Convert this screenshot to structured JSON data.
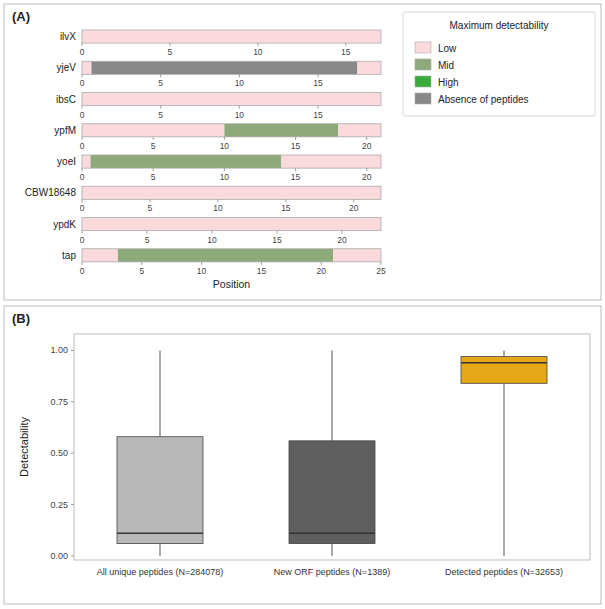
{
  "chart_data": [
    {
      "type": "bar",
      "orientation": "horizontal",
      "stacked": true,
      "title": "(A)",
      "xlabel": "Position",
      "legend": "upper right",
      "legend_title": "Maximum detectability",
      "legend_items": [
        {
          "name": "Low",
          "color": "#fadadd"
        },
        {
          "name": "Mid",
          "color": "#8faa7a"
        },
        {
          "name": "High",
          "color": "#3aaa3a"
        },
        {
          "name": "Absence of peptides",
          "color": "#888888"
        }
      ],
      "rows": [
        {
          "category": "ilvX",
          "xlim": [
            0,
            17
          ],
          "xticks": [
            0,
            5,
            10,
            15
          ],
          "segments": [
            {
              "start": 0,
              "end": 17,
              "level": "Low"
            }
          ]
        },
        {
          "category": "yjeV",
          "xlim": [
            0,
            19
          ],
          "xticks": [
            0,
            5,
            10,
            15
          ],
          "segments": [
            {
              "start": 0,
              "end": 0.6,
              "level": "Low"
            },
            {
              "start": 0.6,
              "end": 17.5,
              "level": "Absence of peptides"
            },
            {
              "start": 17.5,
              "end": 19,
              "level": "Low"
            }
          ]
        },
        {
          "category": "ibsC",
          "xlim": [
            0,
            19
          ],
          "xticks": [
            0,
            5,
            10,
            15
          ],
          "segments": [
            {
              "start": 0,
              "end": 19,
              "level": "Low"
            }
          ]
        },
        {
          "category": "ypfM",
          "xlim": [
            0,
            21
          ],
          "xticks": [
            0,
            5,
            10,
            15,
            20
          ],
          "segments": [
            {
              "start": 0,
              "end": 10,
              "level": "Low"
            },
            {
              "start": 10,
              "end": 18,
              "level": "Mid"
            },
            {
              "start": 18,
              "end": 21,
              "level": "Low"
            }
          ]
        },
        {
          "category": "yoeI",
          "xlim": [
            0,
            21
          ],
          "xticks": [
            0,
            5,
            10,
            15,
            20
          ],
          "segments": [
            {
              "start": 0,
              "end": 0.6,
              "level": "Low"
            },
            {
              "start": 0.6,
              "end": 14,
              "level": "Mid"
            },
            {
              "start": 14,
              "end": 21,
              "level": "Low"
            }
          ]
        },
        {
          "category": "CBW18648",
          "xlim": [
            0,
            22
          ],
          "xticks": [
            0,
            5,
            10,
            15,
            20
          ],
          "segments": [
            {
              "start": 0,
              "end": 22,
              "level": "Low"
            }
          ]
        },
        {
          "category": "ypdK",
          "xlim": [
            0,
            23
          ],
          "xticks": [
            0,
            5,
            10,
            15,
            20
          ],
          "segments": [
            {
              "start": 0,
              "end": 23,
              "level": "Low"
            }
          ]
        },
        {
          "category": "tap",
          "xlim": [
            0,
            25
          ],
          "xticks": [
            0,
            5,
            10,
            15,
            20,
            25
          ],
          "segments": [
            {
              "start": 0,
              "end": 3,
              "level": "Low"
            },
            {
              "start": 3,
              "end": 21,
              "level": "Mid"
            },
            {
              "start": 21,
              "end": 25,
              "level": "Low"
            }
          ]
        }
      ]
    },
    {
      "type": "box",
      "title": "(B)",
      "ylabel": "Detectability",
      "categories": [
        "All unique peptides (N=284078)",
        "New ORF peptides (N=1389)",
        "Detected peptides (N=32653)"
      ],
      "colors": [
        "#b8b8b8",
        "#5f5f5f",
        "#e6a817"
      ],
      "boxes": [
        {
          "whislo": 0.0,
          "q1": 0.06,
          "med": 0.11,
          "q3": 0.58,
          "whishi": 1.0
        },
        {
          "whislo": 0.0,
          "q1": 0.06,
          "med": 0.11,
          "q3": 0.56,
          "whishi": 1.0
        },
        {
          "whislo": 0.0,
          "q1": 0.84,
          "med": 0.94,
          "q3": 0.97,
          "whishi": 1.0
        }
      ],
      "ylim": [
        -0.02,
        1.08
      ],
      "yticks": [
        {
          "value": 0.0,
          "label": "0.00"
        },
        0.25,
        {
          "value": 0.5,
          "label": "0.50"
        },
        0.75,
        {
          "value": 1.0,
          "label": "1.00"
        }
      ]
    }
  ]
}
